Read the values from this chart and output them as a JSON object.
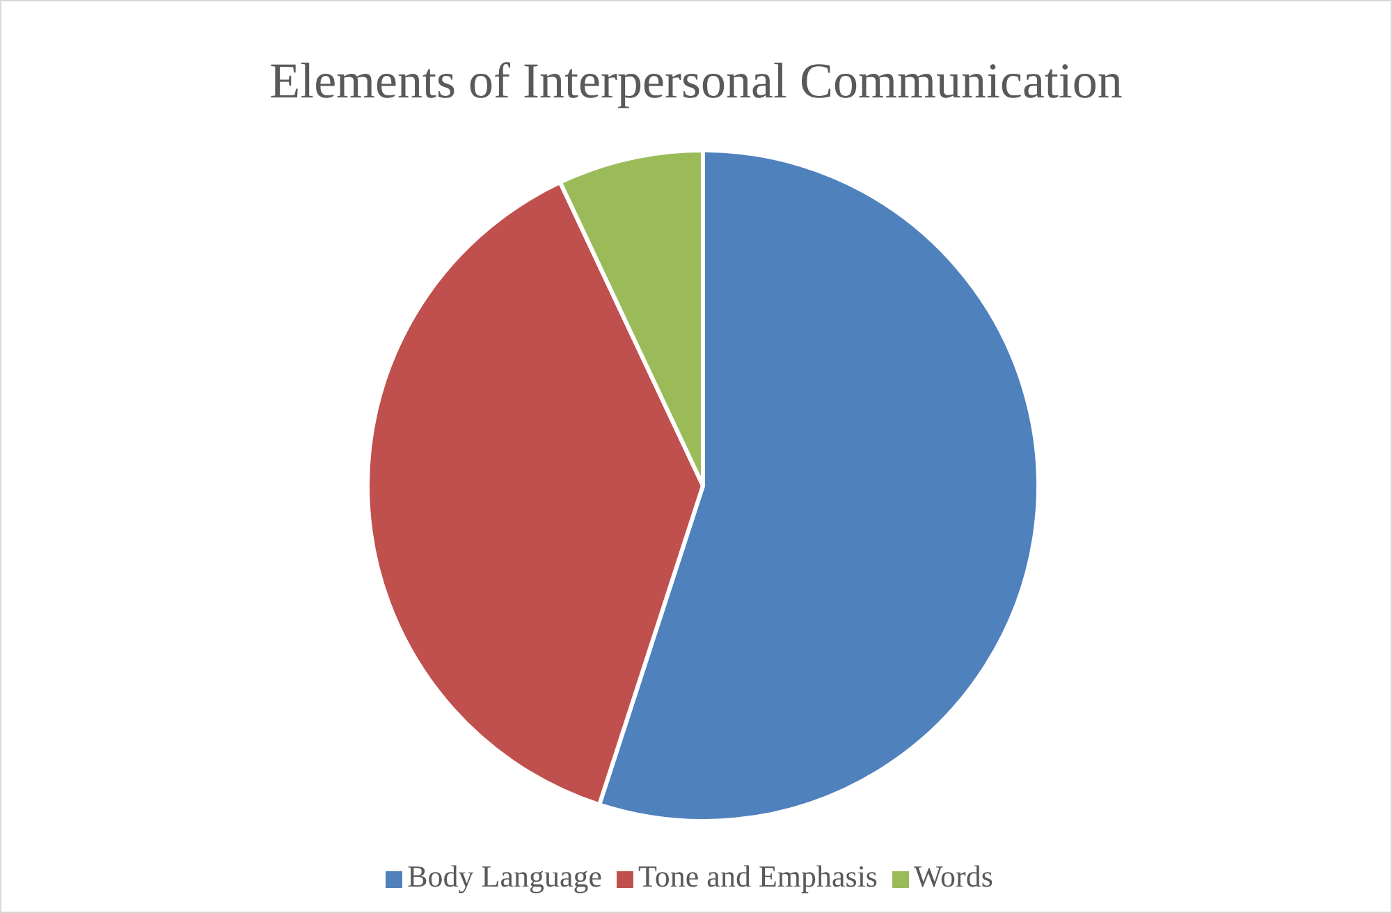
{
  "chart_data": {
    "type": "pie",
    "title": "Elements of Interpersonal Communication",
    "categories": [
      "Body Language",
      "Tone and Emphasis",
      "Words"
    ],
    "values": [
      55,
      38,
      7
    ],
    "colors": [
      "#4f81bd",
      "#c0504d",
      "#9bbb59"
    ],
    "legend": "bottom"
  }
}
